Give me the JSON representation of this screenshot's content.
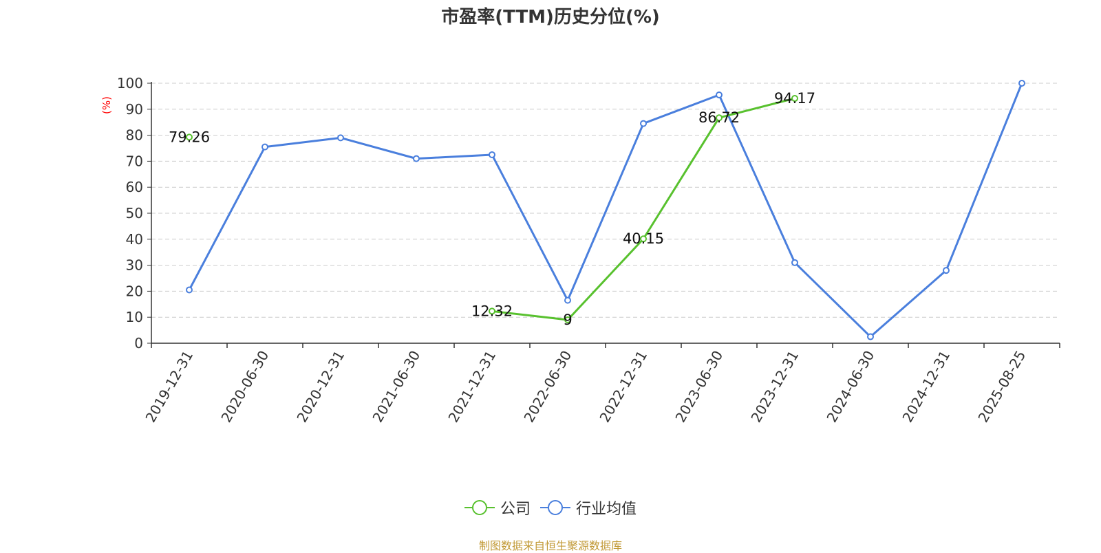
{
  "chart_data": {
    "type": "line",
    "title": "市盈率(TTM)历史分位(%)",
    "ylabel": "(%)",
    "xlabel": "",
    "ylim": [
      0,
      100
    ],
    "yticks": [
      0,
      10,
      20,
      30,
      40,
      50,
      60,
      70,
      80,
      90,
      100
    ],
    "categories": [
      "2019-12-31",
      "2020-06-30",
      "2020-12-31",
      "2021-06-30",
      "2021-12-31",
      "2022-06-30",
      "2022-12-31",
      "2023-06-30",
      "2023-12-31",
      "2024-06-30",
      "2024-12-31",
      "2025-08-25"
    ],
    "grid": true,
    "legend_position": "bottom",
    "series": [
      {
        "name": "公司",
        "color": "#58c12e",
        "show_labels": true,
        "values": [
          79.26,
          null,
          null,
          null,
          12.32,
          9,
          40.15,
          86.72,
          94.17,
          null,
          null,
          null
        ],
        "labels": [
          "79.26",
          "",
          "",
          "",
          "12.32",
          "9",
          "40.15",
          "86.72",
          "94.17",
          "",
          "",
          ""
        ]
      },
      {
        "name": "行业均值",
        "color": "#4a7fdd",
        "show_labels": false,
        "values": [
          20.5,
          75.5,
          79,
          71,
          72.5,
          16.5,
          84.5,
          95.5,
          31,
          2.5,
          28,
          100
        ]
      }
    ]
  },
  "source_note": "制图数据来自恒生聚源数据库"
}
